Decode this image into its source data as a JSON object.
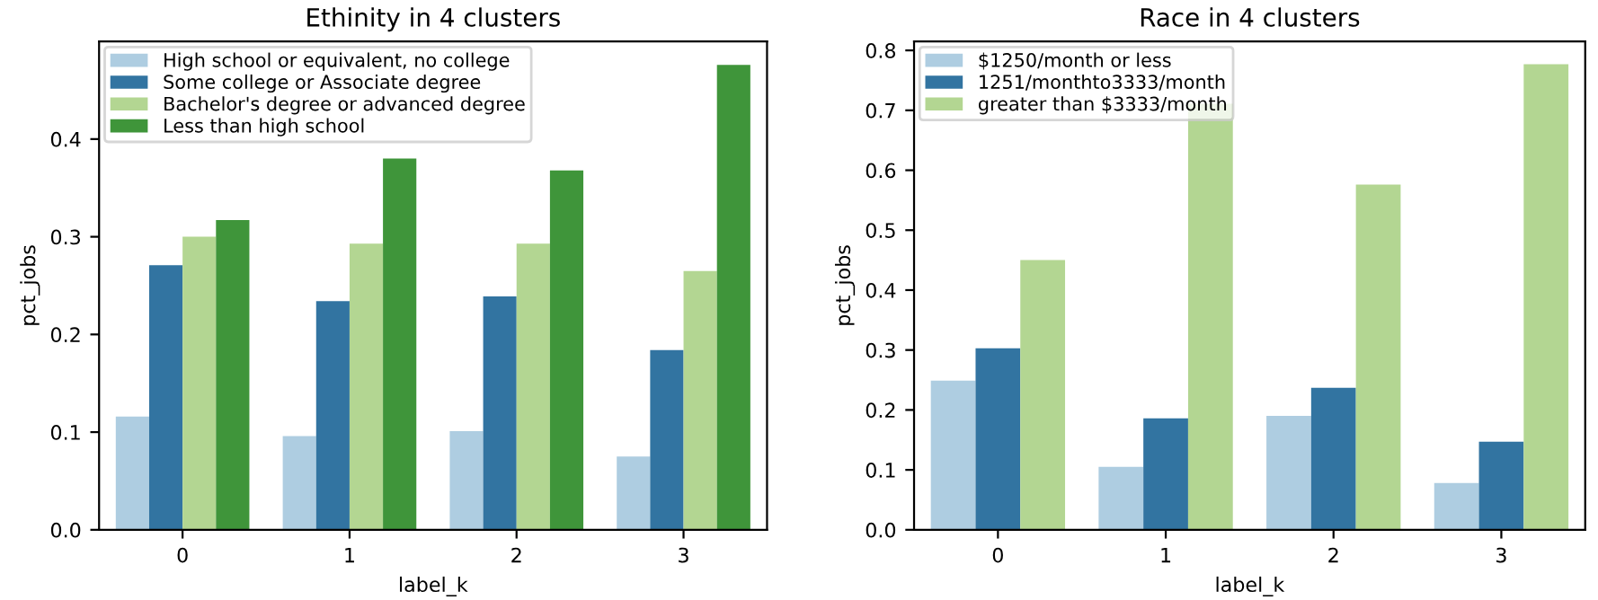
{
  "chart_data": [
    {
      "type": "bar",
      "title": "Ethinity in 4 clusters",
      "xlabel": "label_k",
      "ylabel": "pct_jobs",
      "categories": [
        "0",
        "1",
        "2",
        "3"
      ],
      "ylim": [
        0,
        0.5
      ],
      "yticks": [
        {
          "value": 0,
          "label": "0.0"
        },
        0.1,
        0.2,
        0.3,
        0.4
      ],
      "legend": "top left",
      "grid": false,
      "series": [
        {
          "name": "High school or equivalent, no college",
          "color": "#aecde1",
          "values": [
            0.116,
            0.096,
            0.101,
            0.075
          ]
        },
        {
          "name": "Some college or Associate degree",
          "color": "#3274a1",
          "values": [
            0.271,
            0.234,
            0.239,
            0.184
          ]
        },
        {
          "name": "Bachelor's degree or advanced degree",
          "color": "#b3d692",
          "values": [
            0.3,
            0.293,
            0.293,
            0.265
          ]
        },
        {
          "name": "Less than high school",
          "color": "#3f953a",
          "values": [
            0.317,
            0.38,
            0.368,
            0.476
          ]
        }
      ]
    },
    {
      "type": "bar",
      "title": "Race in 4 clusters",
      "xlabel": "label_k",
      "ylabel": "pct_jobs",
      "categories": [
        "0",
        "1",
        "2",
        "3"
      ],
      "ylim": [
        0,
        0.815
      ],
      "yticks": [
        {
          "value": 0,
          "label": "0.0"
        },
        0.1,
        0.2,
        0.3,
        0.4,
        0.5,
        0.6,
        0.7,
        0.8
      ],
      "legend": "top left",
      "grid": false,
      "series": [
        {
          "name": "$1250/month or less",
          "color": "#aecde1",
          "values": [
            0.249,
            0.105,
            0.19,
            0.078
          ]
        },
        {
          "name": "1251/monthto3333/month",
          "color": "#3274a1",
          "values": [
            0.303,
            0.186,
            0.237,
            0.147
          ]
        },
        {
          "name": "greater than $3333/month",
          "color": "#b3d692",
          "values": [
            0.45,
            0.711,
            0.576,
            0.777
          ]
        }
      ]
    }
  ]
}
